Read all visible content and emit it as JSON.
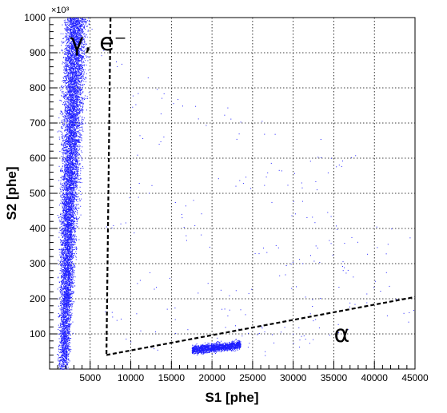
{
  "chart_data": {
    "type": "scatter",
    "xlabel": "S1 [phe]",
    "ylabel": "S2 [phe]",
    "xlim": [
      0,
      45000
    ],
    "ylim": [
      0,
      1000000
    ],
    "x_ticks": [
      5000,
      10000,
      15000,
      20000,
      25000,
      30000,
      35000,
      40000,
      45000
    ],
    "x_tick_labels": [
      "5000",
      "10000",
      "15000",
      "20000",
      "25000",
      "30000",
      "35000",
      "40000",
      "45000"
    ],
    "y_ticks": [
      100000,
      200000,
      300000,
      400000,
      500000,
      600000,
      700000,
      800000,
      900000,
      1000000
    ],
    "y_tick_labels": [
      "100",
      "200",
      "300",
      "400",
      "500",
      "600",
      "700",
      "800",
      "900",
      "1000"
    ],
    "y_exponent_label": "×10³",
    "grid": true,
    "marker_color": "#1f1fff",
    "annotations": [
      {
        "text": "γ, e⁻",
        "x": 2500,
        "y": 930000
      },
      {
        "text": "α",
        "x": 35000,
        "y": 100000
      }
    ],
    "cut_lines": [
      {
        "style": "dashed",
        "points": [
          [
            7500,
            1000000
          ],
          [
            7000,
            40000
          ]
        ]
      },
      {
        "style": "dashed",
        "points": [
          [
            7000,
            40000
          ],
          [
            45000,
            205000
          ]
        ]
      }
    ],
    "populations": [
      {
        "name": "",
        "description_points": "dense gamma/electron band",
        "x_range": [
          500,
          4200
        ],
        "y_range": [
          0,
          1000000
        ]
      },
      {
        "name": "",
        "description_points": "dense alpha cluster",
        "x_range": [
          17500,
          23500
        ],
        "y_range": [
          55000,
          80000
        ]
      }
    ],
    "sample_points": [
      [
        8000,
        880000
      ],
      [
        11500,
        790000
      ],
      [
        14500,
        760000
      ],
      [
        21000,
        720000
      ],
      [
        25000,
        690000
      ],
      [
        13000,
        640000
      ],
      [
        27000,
        560000
      ],
      [
        31000,
        540000
      ],
      [
        33500,
        610000
      ],
      [
        35000,
        590000
      ],
      [
        10500,
        520000
      ],
      [
        16500,
        470000
      ],
      [
        23500,
        520000
      ],
      [
        30500,
        450000
      ],
      [
        33000,
        430000
      ],
      [
        9500,
        410000
      ],
      [
        18000,
        380000
      ],
      [
        26500,
        340000
      ],
      [
        30000,
        300000
      ],
      [
        34000,
        320000
      ],
      [
        37500,
        380000
      ],
      [
        42000,
        350000
      ],
      [
        12000,
        250000
      ],
      [
        20000,
        230000
      ],
      [
        28000,
        240000
      ],
      [
        36000,
        280000
      ],
      [
        40500,
        240000
      ],
      [
        9000,
        160000
      ],
      [
        15500,
        130000
      ],
      [
        22000,
        150000
      ],
      [
        29000,
        120000
      ],
      [
        32000,
        180000
      ],
      [
        38000,
        190000
      ],
      [
        43500,
        150000
      ],
      [
        11000,
        80000
      ],
      [
        25500,
        90000
      ],
      [
        31000,
        70000
      ],
      [
        35500,
        110000
      ],
      [
        27000,
        85000
      ],
      [
        24000,
        100000
      ]
    ]
  }
}
